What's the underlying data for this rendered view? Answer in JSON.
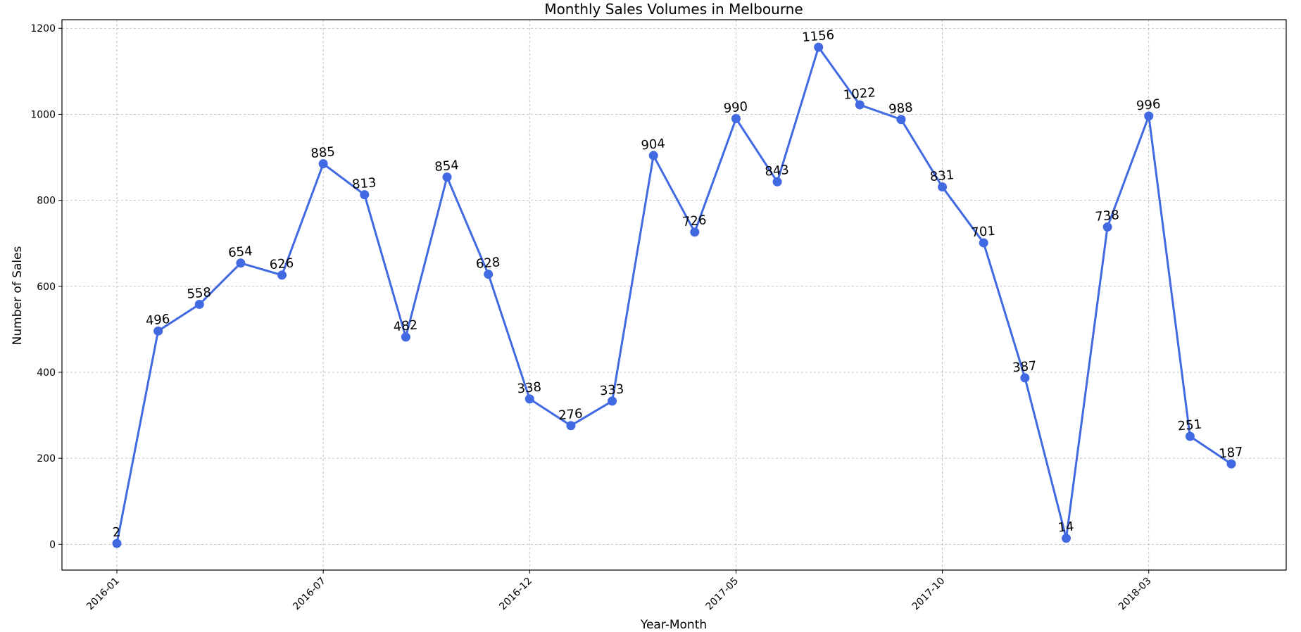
{
  "chart_data": {
    "type": "line",
    "title": "Monthly Sales Volumes in Melbourne",
    "xlabel": "Year-Month",
    "ylabel": "Number of Sales",
    "ylim": [
      -60,
      1220
    ],
    "yticks": [
      0,
      200,
      400,
      600,
      800,
      1000,
      1200
    ],
    "xtick_labels": [
      "2016-01",
      "2016-07",
      "2016-12",
      "2017-05",
      "2017-10",
      "2018-03"
    ],
    "xtick_indices": [
      0,
      5,
      10,
      15,
      20,
      25
    ],
    "grid": true,
    "color": "#4169e1",
    "categories": [
      "2016-01",
      "2016-02",
      "2016-03",
      "2016-04",
      "2016-05",
      "2016-07",
      "2016-08",
      "2016-09",
      "2016-10",
      "2016-11",
      "2016-12",
      "2017-01",
      "2017-02",
      "2017-03",
      "2017-04",
      "2017-05",
      "2017-06",
      "2017-07",
      "2017-08",
      "2017-09",
      "2017-10",
      "2017-11",
      "2017-12",
      "2018-01",
      "2018-02",
      "2018-03",
      "2018-04",
      "2018-05"
    ],
    "values": [
      2,
      496,
      558,
      654,
      626,
      885,
      813,
      482,
      854,
      628,
      338,
      276,
      333,
      904,
      726,
      990,
      843,
      1156,
      1022,
      988,
      831,
      701,
      387,
      14,
      738,
      996,
      251,
      187
    ],
    "data_labels": [
      "2",
      "496",
      "558",
      "654",
      "626",
      "885",
      "813",
      "482",
      "854",
      "628",
      "338",
      "276",
      "333",
      "904",
      "726",
      "990",
      "843",
      "1156",
      "1022",
      "988",
      "831",
      "701",
      "387",
      "14",
      "738",
      "996",
      "251",
      "187"
    ]
  }
}
